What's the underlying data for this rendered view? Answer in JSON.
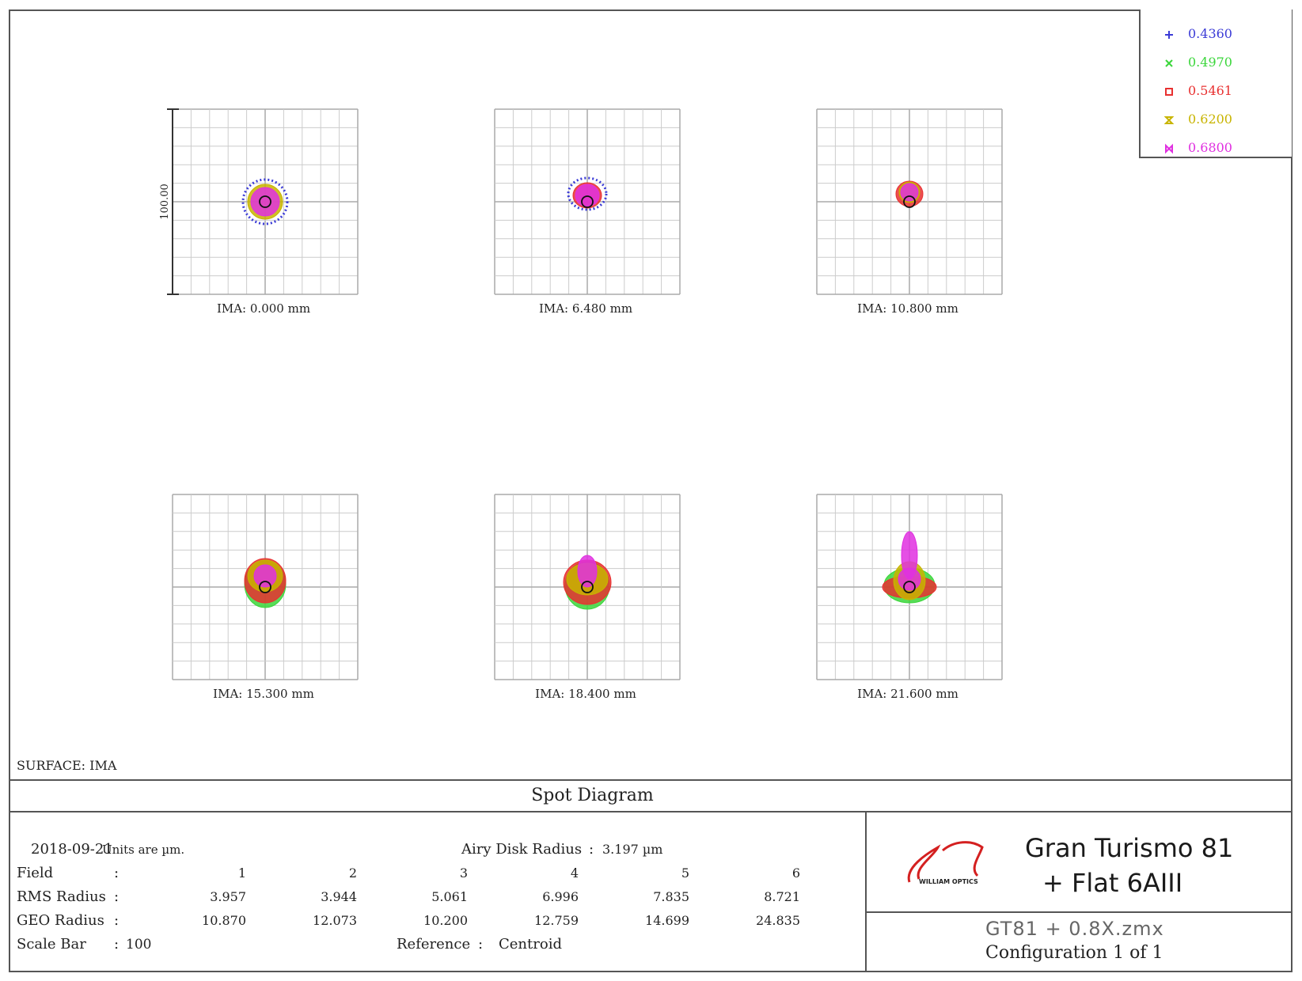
{
  "legend": {
    "items": [
      {
        "label": "0.4360",
        "color": "#3b3bd6",
        "marker": "plus"
      },
      {
        "label": "0.4970",
        "color": "#3bd63b",
        "marker": "cross"
      },
      {
        "label": "0.5461",
        "color": "#e83030",
        "marker": "square"
      },
      {
        "label": "0.6200",
        "color": "#c8b400",
        "marker": "hourglass"
      },
      {
        "label": "0.6800",
        "color": "#e030e0",
        "marker": "bowtie"
      }
    ]
  },
  "scale_label": "100.00",
  "panels": [
    {
      "label": "IMA: 0.000 mm"
    },
    {
      "label": "IMA: 6.480 mm"
    },
    {
      "label": "IMA: 10.800 mm"
    },
    {
      "label": "IMA: 15.300 mm"
    },
    {
      "label": "IMA: 18.400 mm"
    },
    {
      "label": "IMA: 21.600 mm"
    }
  ],
  "surface_label": "SURFACE: IMA",
  "title": "Spot Diagram",
  "info": {
    "date": "2018-09-21",
    "units": "Units are µm.",
    "airy_label": "Airy Disk Radius",
    "airy_colon": ":",
    "airy_value": "3.197 µm",
    "field_label": "Field",
    "rms_label": "RMS Radius",
    "geo_label": "GEO Radius",
    "scale_label": "Scale Bar",
    "colon": ":",
    "scale_value": "100",
    "reference_label": "Reference",
    "reference_value": "Centroid",
    "fields": [
      "1",
      "2",
      "3",
      "4",
      "5",
      "6"
    ],
    "rms": [
      "3.957",
      "3.944",
      "5.061",
      "6.996",
      "7.835",
      "8.721"
    ],
    "geo": [
      "10.870",
      "12.073",
      "10.200",
      "12.759",
      "14.699",
      "24.835"
    ]
  },
  "company": {
    "logo_text": "WILLIAM OPTICS",
    "product_line1": "Gran Turismo 81",
    "product_line2": "+ Flat 6AIII",
    "file_name": "GT81 + 0.8X.zmx",
    "config": "Configuration 1 of 1"
  }
}
